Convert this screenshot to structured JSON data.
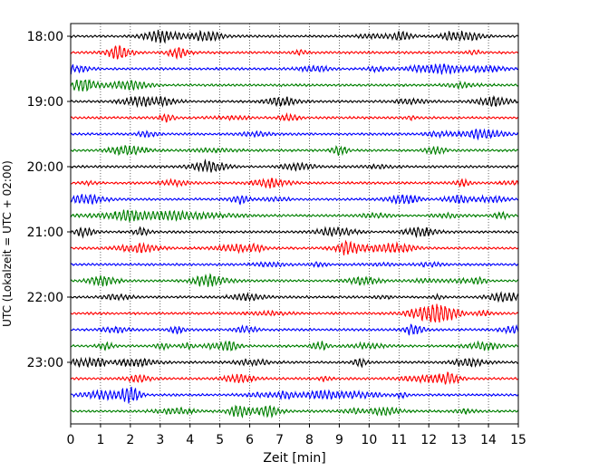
{
  "chart_data": {
    "type": "line",
    "title": "",
    "xlabel": "Zeit  [min]",
    "ylabel": "UTC (Lokalzeit = UTC + 02:00)",
    "xlim": [
      0,
      15
    ],
    "x_ticks": [
      "0",
      "1",
      "2",
      "3",
      "4",
      "5",
      "6",
      "7",
      "8",
      "9",
      "10",
      "11",
      "12",
      "13",
      "14",
      "15"
    ],
    "y_ticks": [
      "18:00",
      "19:00",
      "20:00",
      "21:00",
      "22:00",
      "23:00"
    ],
    "grid": "vertical dotted at each minute",
    "trace_interval_min": 15,
    "trace_count": 24,
    "start_time": "18:00",
    "colors": [
      "#000000",
      "#ff0000",
      "#0000ff",
      "#008000"
    ],
    "series_note_units": "seismogram traces, one per 15-minute segment"
  }
}
